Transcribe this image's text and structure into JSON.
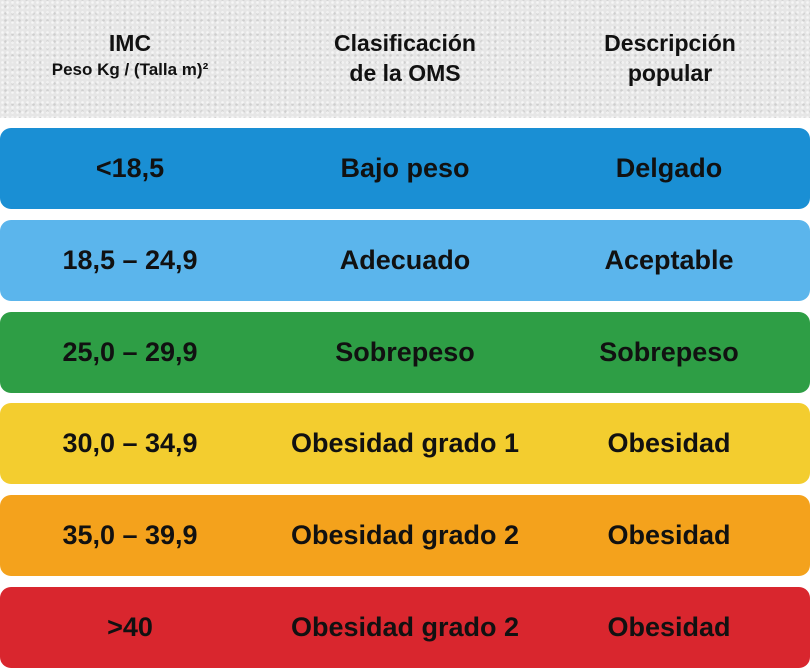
{
  "header": {
    "imc_title": "IMC",
    "imc_subtitle": "Peso Kg / (Talla m)²",
    "oms_line1": "Clasificación",
    "oms_line2": "de la OMS",
    "desc_line1": "Descripción",
    "desc_line2": "popular"
  },
  "rows": [
    {
      "imc": "<18,5",
      "oms": "Bajo peso",
      "popular": "Delgado",
      "color": "#1a8fd4"
    },
    {
      "imc": "18,5 – 24,9",
      "oms": "Adecuado",
      "popular": "Aceptable",
      "color": "#5bb5ec"
    },
    {
      "imc": "25,0 – 29,9",
      "oms": "Sobrepeso",
      "popular": "Sobrepeso",
      "color": "#2e9e45"
    },
    {
      "imc": "30,0 – 34,9",
      "oms": "Obesidad grado 1",
      "popular": "Obesidad",
      "color": "#f3cd2f"
    },
    {
      "imc": "35,0 – 39,9",
      "oms": "Obesidad grado 2",
      "popular": "Obesidad",
      "color": "#f4a21c"
    },
    {
      "imc": ">40",
      "oms": "Obesidad grado 2",
      "popular": "Obesidad",
      "color": "#d9262e"
    }
  ]
}
